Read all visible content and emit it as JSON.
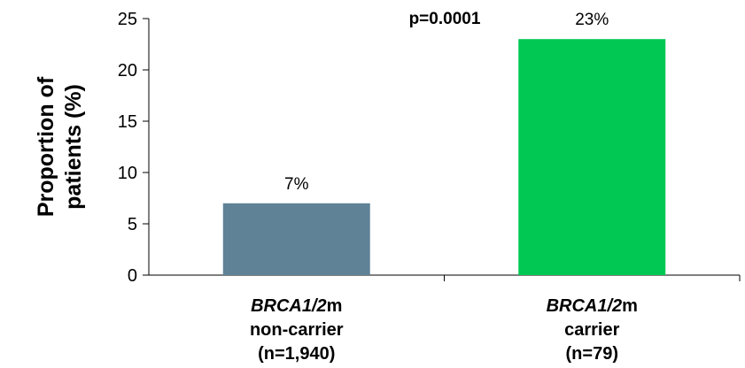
{
  "chart_data": {
    "type": "bar",
    "categories": [
      {
        "gene": "BRCA1/2",
        "gene_suffix": "m",
        "status": "non-carrier",
        "n": "(n=1,940)"
      },
      {
        "gene": "BRCA1/2",
        "gene_suffix": "m",
        "status": "carrier",
        "n": "(n=79)"
      }
    ],
    "values": [
      7,
      23
    ],
    "data_labels": [
      "7%",
      "23%"
    ],
    "colors": [
      "#5f8297",
      "#00c853"
    ],
    "ylabel_lines": [
      "Proportion of",
      "patients (%)"
    ],
    "yticks": [
      0,
      5,
      10,
      15,
      20,
      25
    ],
    "ylim": [
      0,
      25
    ],
    "annotation": "p=0.0001",
    "grid": false
  }
}
